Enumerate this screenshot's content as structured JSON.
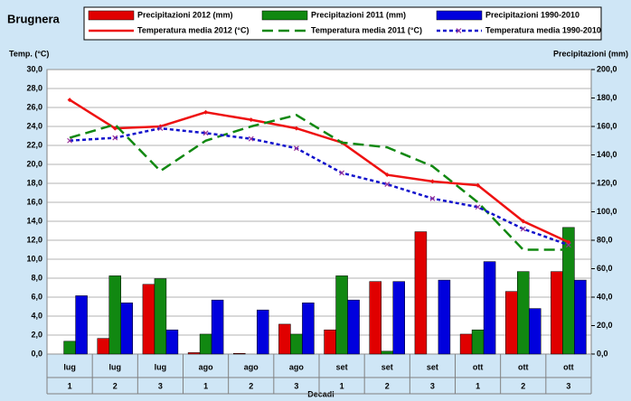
{
  "chart_data": {
    "type": "combo",
    "title": "Brugnera",
    "y_label": "Temp. (°C)",
    "y2_label": "Precipitazioni (mm)",
    "x_label": "Decadi",
    "categories": [
      "lug",
      "lug",
      "lug",
      "ago",
      "ago",
      "ago",
      "set",
      "set",
      "set",
      "ott",
      "ott",
      "ott"
    ],
    "category_numbers": [
      "1",
      "2",
      "3",
      "1",
      "2",
      "3",
      "1",
      "2",
      "3",
      "1",
      "2",
      "3"
    ],
    "ylim": [
      0,
      30
    ],
    "yticks": [
      {
        "value": 0,
        "label": "0,0"
      },
      {
        "value": 2,
        "label": "2,0"
      },
      {
        "value": 4,
        "label": "4,0"
      },
      {
        "value": 6,
        "label": "6,0"
      },
      {
        "value": 8,
        "label": "8,0"
      },
      {
        "value": 10,
        "label": "10,0"
      },
      {
        "value": 12,
        "label": "12,0"
      },
      {
        "value": 14,
        "label": "14,0"
      },
      {
        "value": 16,
        "label": "16,0"
      },
      {
        "value": 18,
        "label": "18,0"
      },
      {
        "value": 20,
        "label": "20,0"
      },
      {
        "value": 22,
        "label": "22,0"
      },
      {
        "value": 24,
        "label": "24,0"
      },
      {
        "value": 26,
        "label": "26,0"
      },
      {
        "value": 28,
        "label": "28,0"
      },
      {
        "value": 30,
        "label": "30,0"
      }
    ],
    "y2lim": [
      0,
      200
    ],
    "y2ticks": [
      {
        "value": 0,
        "label": "0,0"
      },
      {
        "value": 20,
        "label": "20,0"
      },
      {
        "value": 40,
        "label": "40,0"
      },
      {
        "value": 60,
        "label": "60,0"
      },
      {
        "value": 80,
        "label": "80,0"
      },
      {
        "value": 100,
        "label": "100,0"
      },
      {
        "value": 120,
        "label": "120,0"
      },
      {
        "value": 140,
        "label": "140,0"
      },
      {
        "value": 160,
        "label": "160,0"
      },
      {
        "value": 180,
        "label": "180,0"
      },
      {
        "value": 200,
        "label": "200,0"
      }
    ],
    "grid": true,
    "series": [
      {
        "name": "Precipitazioni 2012 (mm)",
        "type": "bar",
        "axis": "y2",
        "color": "#e00000",
        "values": [
          0,
          11,
          49,
          1,
          0.5,
          21,
          17,
          51,
          86,
          14,
          44,
          58
        ]
      },
      {
        "name": "Precipitazioni 2011 (mm)",
        "type": "bar",
        "axis": "y2",
        "color": "#118811",
        "values": [
          9,
          55,
          53,
          14,
          0,
          14,
          55,
          2,
          0,
          17,
          58,
          89
        ]
      },
      {
        "name": "Precipitazioni 1990-2010",
        "type": "bar",
        "axis": "y2",
        "color": "#0000dd",
        "values": [
          41,
          36,
          17,
          38,
          31,
          36,
          38,
          51,
          52,
          65,
          32,
          52
        ]
      },
      {
        "name": "Temperatura media 2012 (°C)",
        "type": "line",
        "line_style": "solid",
        "marker": "diamond",
        "color": "#ee1111",
        "values": [
          26.8,
          23.8,
          24.0,
          25.5,
          24.7,
          23.8,
          22.3,
          18.9,
          18.2,
          17.8,
          14.0,
          11.8
        ]
      },
      {
        "name": "Temperatura media 2011 (°C)",
        "type": "line",
        "line_style": "dashed",
        "marker": "none",
        "color": "#118811",
        "values": [
          22.8,
          24.2,
          19.3,
          22.5,
          24.0,
          25.2,
          22.3,
          21.8,
          19.8,
          16.0,
          11.0,
          11.0
        ]
      },
      {
        "name": "Temperatura media 1990-2010",
        "type": "line",
        "line_style": "dotted",
        "marker": "x",
        "color": "#1111cc",
        "values": [
          22.5,
          22.8,
          23.8,
          23.3,
          22.7,
          21.7,
          19.1,
          17.9,
          16.4,
          15.5,
          13.2,
          11.5
        ]
      }
    ]
  }
}
